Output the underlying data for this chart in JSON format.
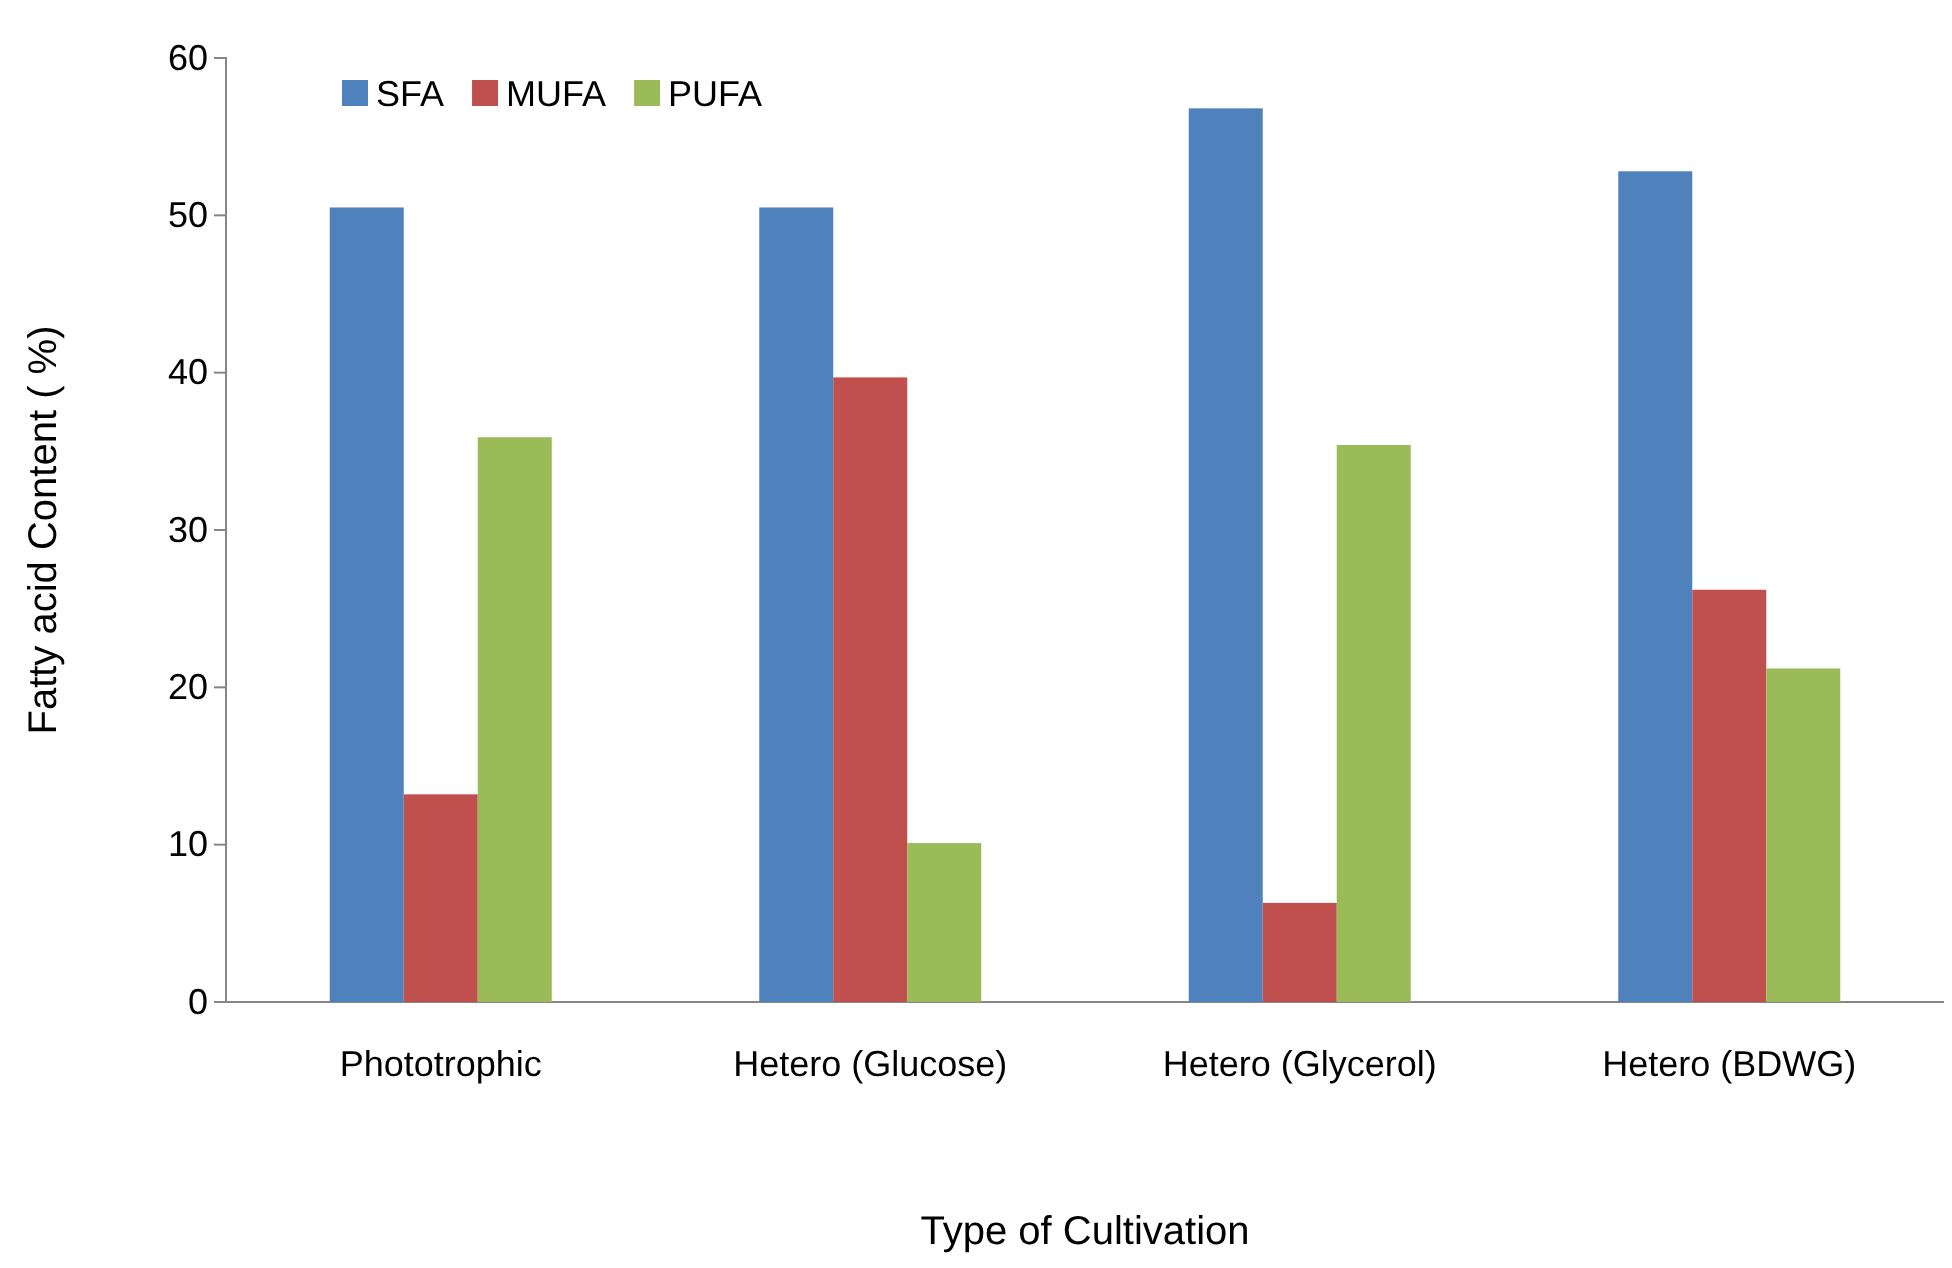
{
  "chart_data": {
    "type": "bar",
    "xlabel": "Type of Cultivation",
    "ylabel": "Fatty acid Content ( %)",
    "categories": [
      "Phototrophic",
      "Hetero (Glucose)",
      "Hetero (Glycerol)",
      "Hetero (BDWG)"
    ],
    "series": [
      {
        "name": "SFA",
        "color": "#4f81bd",
        "values": [
          50.5,
          50.5,
          56.8,
          52.8
        ]
      },
      {
        "name": "MUFA",
        "color": "#c0504d",
        "values": [
          13.2,
          39.7,
          6.3,
          26.2
        ]
      },
      {
        "name": "PUFA",
        "color": "#9bbb59",
        "values": [
          35.9,
          10.1,
          35.4,
          21.2
        ]
      }
    ],
    "ylim": [
      0,
      60
    ],
    "yticks": [
      0,
      10,
      20,
      30,
      40,
      50,
      60
    ],
    "grid": false,
    "legend": "top left"
  }
}
